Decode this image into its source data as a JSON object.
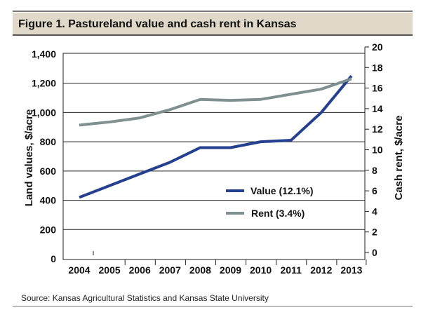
{
  "chart_data": {
    "type": "line",
    "title": "Figure 1. Pastureland value and cash rent in Kansas",
    "source": "Source: Kansas Agricultural Statistics and Kansas State University",
    "x": [
      "2004",
      "2005",
      "2006",
      "2007",
      "2008",
      "2009",
      "2010",
      "2011",
      "2012",
      "2013"
    ],
    "ylabel_left": "Land values, $/acre",
    "ylabel_right": "Cash rent, $/acre",
    "ylim_left": [
      0,
      1400
    ],
    "ylim_right": [
      0,
      20
    ],
    "yticks_left": [
      "0",
      "200",
      "400",
      "600",
      "800",
      "1,000",
      "1,200",
      "1,400"
    ],
    "yticks_right": [
      "0",
      "2",
      "4",
      "6",
      "8",
      "10",
      "12",
      "14",
      "16",
      "18",
      "20"
    ],
    "grid": true,
    "legend_placement": "center-right",
    "series": [
      {
        "name": "Value (12.1%)",
        "axis": "left",
        "color": "#24408e",
        "values": [
          420,
          500,
          580,
          660,
          760,
          760,
          800,
          810,
          1000,
          1250
        ]
      },
      {
        "name": "Rent (3.4%)",
        "axis": "right",
        "color": "#7f9091",
        "values": [
          12.4,
          12.7,
          13.1,
          13.9,
          14.9,
          14.8,
          14.9,
          15.4,
          15.9,
          16.9
        ]
      }
    ]
  },
  "colors": {
    "title_bar": "#e0d8c8",
    "rule": "#666666"
  }
}
